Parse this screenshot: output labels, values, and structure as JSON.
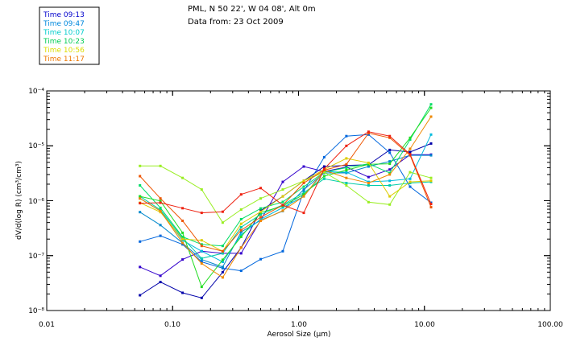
{
  "chart_data": {
    "type": "line",
    "title": "PML, N 50 22', W 04 08', Alt 0m",
    "subtitle": "Data from: 23 Oct 2009",
    "xlabel": "Aerosol Size (µm)",
    "ylabel": "dV/d(log R) (cm³/cm³)",
    "xscale": "log",
    "yscale": "log",
    "xlim": [
      0.01,
      100
    ],
    "ylim": [
      1e-08,
      0.0001
    ],
    "x_tick_labels": [
      "0.01",
      "0.10",
      "1.00",
      "10.00",
      "100.00"
    ],
    "y_tick_labels": [
      "10⁻⁸",
      "10⁻⁷",
      "10⁻⁶",
      "10⁻⁵",
      "10⁻⁴"
    ],
    "legend_position": "top-left",
    "x": [
      0.055,
      0.08,
      0.12,
      0.17,
      0.25,
      0.35,
      0.5,
      0.75,
      1.1,
      1.6,
      2.4,
      3.6,
      5.3,
      7.7,
      11.3
    ],
    "series": [
      {
        "name": "Time 09:13",
        "color": "#0000aa",
        "values": [
          1.9e-08,
          3.3e-08,
          2.1e-08,
          1.7e-08,
          5e-08,
          1.4e-07,
          6.6e-07,
          1.2e-06,
          2.3e-06,
          4.2e-06,
          4.4e-06,
          4.5e-06,
          8.4e-06,
          7.7e-06,
          1.1e-05
        ]
      },
      {
        "name": "Time 09:13",
        "color": "#3300cc",
        "values": [
          6.2e-08,
          4.3e-08,
          8.5e-08,
          1.2e-07,
          1.1e-07,
          1.1e-07,
          4.4e-07,
          2.2e-06,
          4.2e-06,
          3.4e-06,
          4.1e-06,
          2.7e-06,
          3.7e-06,
          6.9e-06,
          6.9e-06
        ]
      },
      {
        "name": "Time 09:47",
        "color": "#0066dd",
        "values": [
          1.8e-07,
          2.3e-07,
          1.6e-07,
          7.7e-08,
          5.9e-08,
          5.3e-08,
          8.6e-08,
          1.2e-07,
          1.5e-06,
          6.2e-06,
          1.5e-05,
          1.6e-05,
          7.5e-06,
          1.8e-06,
          9.2e-07
        ]
      },
      {
        "name": "Time 09:47",
        "color": "#0088cc",
        "values": [
          6.2e-07,
          3.6e-07,
          1.7e-07,
          8.5e-08,
          6.2e-08,
          2.7e-07,
          4.4e-07,
          6.5e-07,
          1.6e-06,
          3.2e-06,
          3.2e-06,
          4.2e-06,
          5.2e-06,
          6.7e-06,
          6.7e-06
        ]
      },
      {
        "name": "Time 10:07",
        "color": "#00bbdd",
        "values": [
          1.1e-06,
          6.5e-07,
          1.9e-07,
          1.2e-07,
          7.7e-08,
          2.4e-07,
          4.6e-07,
          7.5e-07,
          1.2e-06,
          3.4e-06,
          3.3e-06,
          2.2e-06,
          2.3e-06,
          2.5e-06,
          1.6e-05
        ]
      },
      {
        "name": "Time 10:07",
        "color": "#00ccaa",
        "values": [
          1.2e-06,
          6.8e-07,
          2.1e-07,
          8.9e-08,
          1.1e-07,
          3.3e-07,
          5.6e-07,
          8.4e-07,
          1.4e-06,
          2.5e-06,
          2.1e-06,
          1.9e-06,
          1.9e-06,
          2.1e-06,
          2.2e-06
        ]
      },
      {
        "name": "Time 10:23",
        "color": "#00dd66",
        "values": [
          1.9e-06,
          7.4e-07,
          2.2e-07,
          1.6e-07,
          1.5e-07,
          4.6e-07,
          7.2e-07,
          9.5e-07,
          1.8e-06,
          3.3e-06,
          4e-06,
          4.7e-06,
          3.2e-06,
          1.3e-05,
          5.7e-05
        ]
      },
      {
        "name": "Time 10:23",
        "color": "#22dd22",
        "values": [
          1.2e-06,
          9.9e-07,
          2.6e-07,
          2.7e-08,
          8.4e-08,
          2.2e-07,
          6.1e-07,
          8e-07,
          1.3e-06,
          2.8e-06,
          3.6e-06,
          4.6e-06,
          4.7e-06,
          1.4e-05,
          4.9e-05
        ]
      },
      {
        "name": "Time 10:56",
        "color": "#99ee22",
        "values": [
          4.3e-06,
          4.3e-06,
          2.6e-06,
          1.6e-06,
          4e-07,
          6.9e-07,
          1.1e-06,
          1.6e-06,
          2.3e-06,
          3.3e-06,
          1.9e-06,
          9.4e-07,
          8.5e-07,
          3.3e-06,
          2.6e-06
        ]
      },
      {
        "name": "Time 10:56",
        "color": "#ddcc00",
        "values": [
          9.2e-07,
          6.2e-07,
          2e-07,
          1.9e-07,
          1.2e-07,
          3.8e-07,
          6.3e-07,
          1.2e-06,
          2.3e-06,
          3.7e-06,
          5.9e-06,
          4.9e-06,
          1.2e-06,
          2.2e-06,
          2.3e-06
        ]
      },
      {
        "name": "Time 11:17",
        "color": "#ee8800",
        "values": [
          1.1e-06,
          6.5e-07,
          1.7e-07,
          7.2e-08,
          4e-08,
          1.4e-07,
          4.3e-07,
          6.6e-07,
          1.2e-06,
          3.6e-06,
          2.6e-06,
          2.1e-06,
          3e-06,
          8.8e-06,
          3.4e-05
        ]
      },
      {
        "name": "Time 11:17",
        "color": "#ee5500",
        "values": [
          2.8e-06,
          1.1e-06,
          4.3e-07,
          1.5e-07,
          1.2e-07,
          2.9e-07,
          5e-07,
          8.3e-07,
          2.1e-06,
          3.6e-06,
          4.6e-06,
          1.7e-05,
          1.4e-05,
          6.7e-06,
          7.6e-07
        ]
      },
      {
        "name": "Time 11:17",
        "color": "#ee2211",
        "values": [
          9e-07,
          9.2e-07,
          7.3e-07,
          6e-07,
          6.3e-07,
          1.3e-06,
          1.7e-06,
          8.3e-07,
          6e-07,
          3.8e-06,
          1e-05,
          1.8e-05,
          1.5e-05,
          7e-06,
          8.7e-07
        ]
      }
    ]
  },
  "legend": {
    "items": [
      {
        "label": "Time 09:13",
        "color": "#0000cc"
      },
      {
        "label": "Time 09:47",
        "color": "#0088dd"
      },
      {
        "label": "Time 10:07",
        "color": "#00cccc"
      },
      {
        "label": "Time 10:23",
        "color": "#00cc55"
      },
      {
        "label": "Time 10:56",
        "color": "#dddd00"
      },
      {
        "label": "Time 11:17",
        "color": "#ee7700"
      }
    ]
  }
}
